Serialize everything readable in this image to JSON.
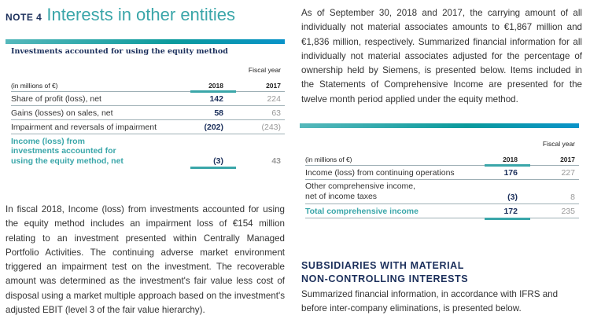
{
  "note": {
    "label": "NOTE 4",
    "title": "Interests in other entities"
  },
  "table1": {
    "title": "Investments accounted for using the equity method",
    "fiscal_year": "Fiscal year",
    "unit": "(in millions of €)",
    "col1": "2018",
    "col2": "2017",
    "rows": [
      {
        "label": "Share of profit (loss), net",
        "v2018": "142",
        "v2017": "224"
      },
      {
        "label": "Gains (losses) on sales, net",
        "v2018": "58",
        "v2017": "63"
      },
      {
        "label": "Impairment and reversals of impairment",
        "v2018": "(202)",
        "v2017": "(243)"
      }
    ],
    "total": {
      "label1": "Income (loss) from",
      "label2": "investments accounted for",
      "label3": "using the equity method, net",
      "v2018": "(3)",
      "v2017": "43"
    }
  },
  "left_paragraph": "In fiscal 2018, Income (loss) from investments accounted for using the equity method includes an impairment loss of €154 million relating to an investment presented within Centrally Managed Portfolio Activities. The continuing adverse market environment triggered an impairment test on the investment. The recoverable amount was determined as the investment's fair value less cost of disposal using a market multiple approach based on the investment's adjusted EBIT (level 3 of the fair value hierarchy).",
  "right_paragraph": "As of September 30, 2018 and 2017, the carrying amount of all individually not material associates amounts to €1,867 million and €1,836 million, respectively. Summarized financial information for all individually not material associates adjusted for the percentage of ownership held by Siemens, is presented below. Items included in the Statements of Comprehensive Income are presented for the twelve month period applied under the equity method.",
  "table2": {
    "fiscal_year": "Fiscal year",
    "unit": "(in millions of €)",
    "col1": "2018",
    "col2": "2017",
    "rows": [
      {
        "label": "Income (loss) from continuing operations",
        "v2018": "176",
        "v2017": "227"
      },
      {
        "label1": "Other comprehensive income,",
        "label2": "net of income taxes",
        "v2018": "(3)",
        "v2017": "8"
      }
    ],
    "total": {
      "label": "Total comprehensive income",
      "v2018": "172",
      "v2017": "235"
    }
  },
  "section": {
    "heading1": "SUBSIDIARIES WITH MATERIAL",
    "heading2": "NON-CONTROLLING INTERESTS",
    "text": "Summarized financial information, in accordance with IFRS and before inter-company eliminations, is presented below."
  }
}
